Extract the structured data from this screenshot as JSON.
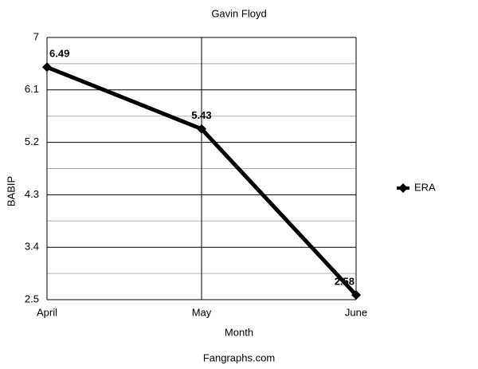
{
  "chart_data": {
    "type": "line",
    "title": "Gavin Floyd",
    "x_label": "Month",
    "y_label": "BABIP",
    "source": "Fangraphs.com",
    "categories": [
      "April",
      "May",
      "June"
    ],
    "series": [
      {
        "name": "ERA",
        "color": "#000000",
        "values": [
          6.49,
          5.43,
          2.58
        ]
      }
    ],
    "ylim": [
      2.5,
      7
    ],
    "yticks": [
      2.5,
      3.4,
      4.3,
      5.2,
      6.1,
      7
    ],
    "grid": true,
    "legend": "right"
  }
}
